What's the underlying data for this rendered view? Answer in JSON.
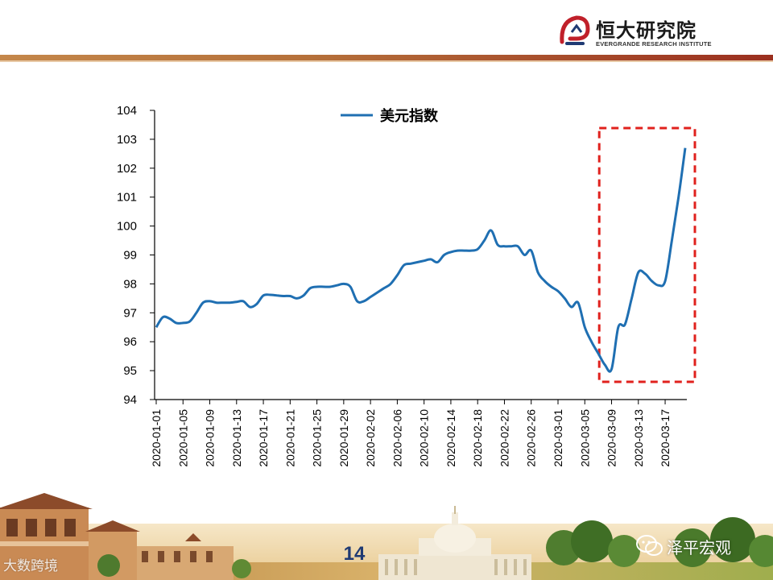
{
  "brand": {
    "name_cn": "恒大研究院",
    "name_en": "EVERGRANDE RESEARCH INSTITUTE",
    "accent": "#c0202a",
    "navy": "#1f3a73"
  },
  "page_number": "14",
  "watermark_left": "大数跨境",
  "watermark_right": "泽平宏观",
  "colors": {
    "line": "#1f6fb2",
    "highlight_box": "#e0211d",
    "axis": "#000000"
  },
  "chart_data": {
    "type": "line",
    "legend": "top-center",
    "grid": false,
    "ylim": [
      94,
      104
    ],
    "yticks": [
      "94",
      "95",
      "96",
      "97",
      "98",
      "99",
      "100",
      "101",
      "102",
      "103",
      "104"
    ],
    "xtick_labels": [
      "2020-01-01",
      "2020-01-05",
      "2020-01-09",
      "2020-01-13",
      "2020-01-17",
      "2020-01-21",
      "2020-01-25",
      "2020-01-29",
      "2020-02-02",
      "2020-02-06",
      "2020-02-10",
      "2020-02-14",
      "2020-02-18",
      "2020-02-22",
      "2020-02-26",
      "2020-03-01",
      "2020-03-05",
      "2020-03-09",
      "2020-03-13",
      "2020-03-17"
    ],
    "highlight": {
      "from": "2020-03-08",
      "to": "2020-03-20"
    },
    "series": [
      {
        "name": "美元指数",
        "color": "#1f6fb2",
        "points": [
          [
            "2020-01-01",
            96.5
          ],
          [
            "2020-01-02",
            96.85
          ],
          [
            "2020-01-03",
            96.8
          ],
          [
            "2020-01-04",
            96.65
          ],
          [
            "2020-01-05",
            96.65
          ],
          [
            "2020-01-06",
            96.7
          ],
          [
            "2020-01-07",
            97.0
          ],
          [
            "2020-01-08",
            97.35
          ],
          [
            "2020-01-09",
            97.4
          ],
          [
            "2020-01-10",
            97.35
          ],
          [
            "2020-01-11",
            97.35
          ],
          [
            "2020-01-12",
            97.35
          ],
          [
            "2020-01-13",
            97.38
          ],
          [
            "2020-01-14",
            97.4
          ],
          [
            "2020-01-15",
            97.2
          ],
          [
            "2020-01-16",
            97.3
          ],
          [
            "2020-01-17",
            97.6
          ],
          [
            "2020-01-18",
            97.62
          ],
          [
            "2020-01-19",
            97.6
          ],
          [
            "2020-01-20",
            97.58
          ],
          [
            "2020-01-21",
            97.58
          ],
          [
            "2020-01-22",
            97.5
          ],
          [
            "2020-01-23",
            97.6
          ],
          [
            "2020-01-24",
            97.85
          ],
          [
            "2020-01-25",
            97.9
          ],
          [
            "2020-01-26",
            97.9
          ],
          [
            "2020-01-27",
            97.9
          ],
          [
            "2020-01-28",
            97.95
          ],
          [
            "2020-01-29",
            98.0
          ],
          [
            "2020-01-30",
            97.9
          ],
          [
            "2020-01-31",
            97.4
          ],
          [
            "2020-02-01",
            97.4
          ],
          [
            "2020-02-02",
            97.55
          ],
          [
            "2020-02-03",
            97.7
          ],
          [
            "2020-02-04",
            97.85
          ],
          [
            "2020-02-05",
            98.0
          ],
          [
            "2020-02-06",
            98.3
          ],
          [
            "2020-02-07",
            98.65
          ],
          [
            "2020-02-08",
            98.7
          ],
          [
            "2020-02-09",
            98.75
          ],
          [
            "2020-02-10",
            98.8
          ],
          [
            "2020-02-11",
            98.85
          ],
          [
            "2020-02-12",
            98.75
          ],
          [
            "2020-02-13",
            99.0
          ],
          [
            "2020-02-14",
            99.1
          ],
          [
            "2020-02-15",
            99.15
          ],
          [
            "2020-02-16",
            99.15
          ],
          [
            "2020-02-17",
            99.15
          ],
          [
            "2020-02-18",
            99.2
          ],
          [
            "2020-02-19",
            99.5
          ],
          [
            "2020-02-20",
            99.85
          ],
          [
            "2020-02-21",
            99.35
          ],
          [
            "2020-02-22",
            99.3
          ],
          [
            "2020-02-23",
            99.3
          ],
          [
            "2020-02-24",
            99.3
          ],
          [
            "2020-02-25",
            99.0
          ],
          [
            "2020-02-26",
            99.15
          ],
          [
            "2020-02-27",
            98.4
          ],
          [
            "2020-02-28",
            98.1
          ],
          [
            "2020-02-29",
            97.9
          ],
          [
            "2020-03-01",
            97.75
          ],
          [
            "2020-03-02",
            97.5
          ],
          [
            "2020-03-03",
            97.2
          ],
          [
            "2020-03-04",
            97.35
          ],
          [
            "2020-03-05",
            96.5
          ],
          [
            "2020-03-06",
            96.0
          ],
          [
            "2020-03-07",
            95.6
          ],
          [
            "2020-03-08",
            95.2
          ],
          [
            "2020-03-09",
            95.05
          ],
          [
            "2020-03-10",
            96.5
          ],
          [
            "2020-03-11",
            96.6
          ],
          [
            "2020-03-12",
            97.5
          ],
          [
            "2020-03-13",
            98.4
          ],
          [
            "2020-03-14",
            98.35
          ],
          [
            "2020-03-15",
            98.1
          ],
          [
            "2020-03-16",
            97.95
          ],
          [
            "2020-03-17",
            98.1
          ],
          [
            "2020-03-18",
            99.5
          ],
          [
            "2020-03-19",
            101.0
          ],
          [
            "2020-03-20",
            102.7
          ]
        ]
      }
    ]
  }
}
